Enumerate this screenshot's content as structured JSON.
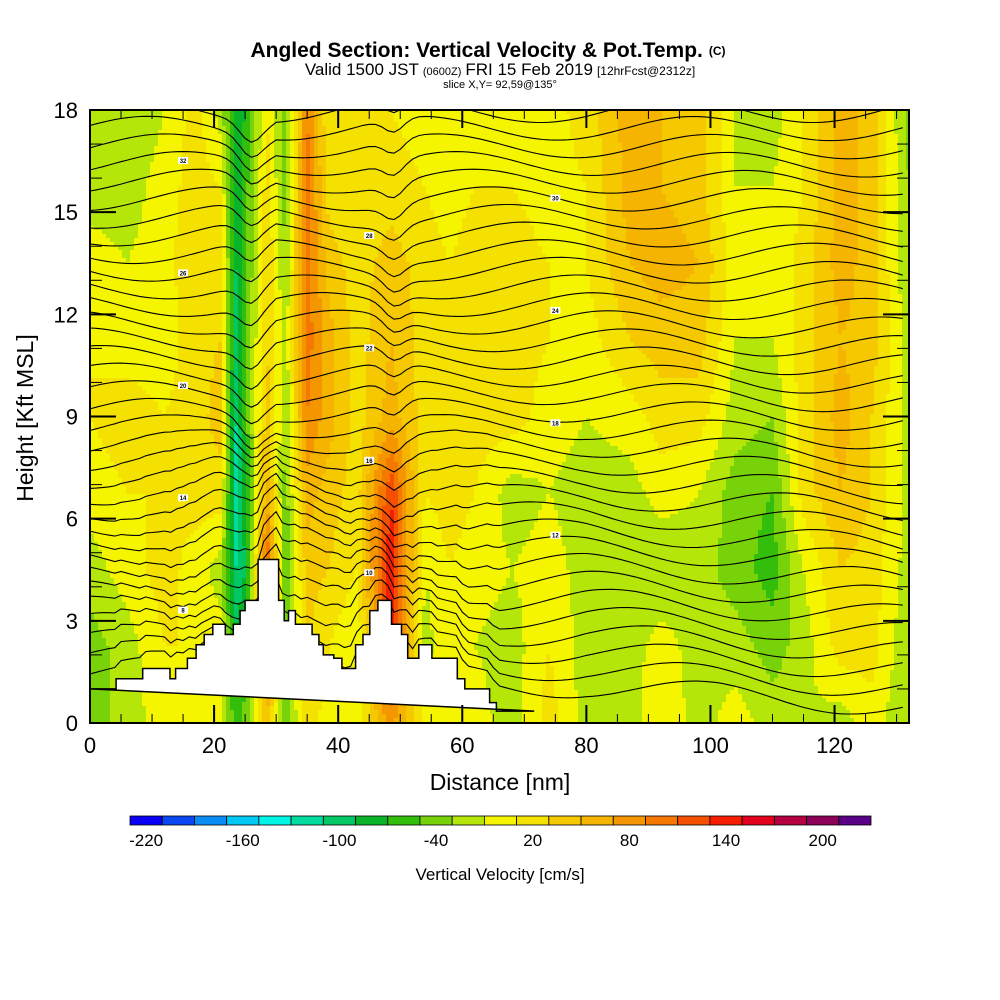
{
  "chart_data": {
    "type": "heatmap",
    "title": "Angled Section: Vertical Velocity & Pot.Temp.",
    "title_suffix": "(C)",
    "subtitle_parts": {
      "valid": "Valid 1500 JST",
      "utc": "(0600Z)",
      "date": "FRI 15 Feb 2019",
      "forecast": "[12hrFcst@2312z]"
    },
    "slice_label": "slice X,Y= 92,59@135°",
    "xlabel": "Distance [nm]",
    "ylabel": "Height [Kft MSL]",
    "xlim": [
      0,
      132
    ],
    "ylim": [
      0,
      18
    ],
    "xticks": [
      0,
      20,
      40,
      60,
      80,
      100,
      120
    ],
    "xtick_labels": [
      "0",
      "20",
      "40",
      "60",
      "80",
      "100",
      "120"
    ],
    "xminor_step": 5,
    "yticks": [
      0,
      3,
      6,
      9,
      12,
      15,
      18
    ],
    "ytick_labels": [
      "0",
      "3",
      "6",
      "9",
      "12",
      "15",
      "18"
    ],
    "yminor_step": 1,
    "colorbar": {
      "label": "Vertical Velocity [cm/s]",
      "min": -230,
      "step": 20,
      "tick_values": [
        -220,
        -160,
        -100,
        -40,
        20,
        80,
        140,
        200
      ],
      "tick_labels": [
        "-220",
        "-160",
        "-100",
        "-40",
        "20",
        "80",
        "140",
        "200"
      ],
      "colors": [
        "#0a00f5",
        "#0a48f5",
        "#0a8cf5",
        "#00c8f5",
        "#00f5e6",
        "#00dca0",
        "#00c864",
        "#0ab428",
        "#32be0a",
        "#78d20a",
        "#b4e60a",
        "#f5f500",
        "#f5e100",
        "#f5c800",
        "#f5b400",
        "#f59600",
        "#f57800",
        "#f55000",
        "#f51e00",
        "#e1001e",
        "#b40041",
        "#8c005a",
        "#5a0087"
      ]
    },
    "terrain_kft": {
      "distance_nm": [
        0,
        4.2,
        4.2,
        8.5,
        8.5,
        12.9,
        12.9,
        13.8,
        13.8,
        15.7,
        15.7,
        17.1,
        17.1,
        18.4,
        18.4,
        19.8,
        19.8,
        21.8,
        21.8,
        23.1,
        23.1,
        24.2,
        24.2,
        25.0,
        25.0,
        27.1,
        27.1,
        30.4,
        30.4,
        31.3,
        31.3,
        32.0,
        32.0,
        33.1,
        33.1,
        35.8,
        35.8,
        36.9,
        36.9,
        37.6,
        37.6,
        39.3,
        39.3,
        40.6,
        40.6,
        42.8,
        42.8,
        44.0,
        44.0,
        45.1,
        45.1,
        46.4,
        46.4,
        48.6,
        48.6,
        50.2,
        50.2,
        51.2,
        51.2,
        53.0,
        53.0,
        55.1,
        55.1,
        59.2,
        59.2,
        60.4,
        60.4,
        64.4,
        64.4,
        65.5,
        65.5,
        67.6,
        67.6,
        71.6,
        71.6,
        132
      ],
      "height": [
        1.0,
        1.0,
        1.3,
        1.3,
        1.6,
        1.6,
        1.3,
        1.3,
        1.6,
        1.6,
        1.9,
        1.9,
        2.3,
        2.3,
        2.6,
        2.6,
        2.9,
        2.9,
        2.6,
        2.6,
        2.9,
        2.9,
        3.3,
        3.3,
        3.6,
        3.6,
        4.8,
        4.8,
        3.6,
        3.6,
        3.0,
        3.0,
        3.3,
        3.3,
        2.9,
        2.9,
        2.6,
        2.6,
        2.3,
        2.3,
        2.0,
        2.0,
        1.9,
        1.9,
        1.6,
        1.6,
        2.3,
        2.3,
        2.6,
        2.6,
        3.3,
        3.3,
        3.6,
        3.6,
        2.9,
        2.9,
        2.6,
        2.6,
        1.9,
        1.9,
        2.3,
        2.3,
        1.9,
        1.9,
        1.3,
        1.3,
        1.0,
        1.0,
        0.6,
        0.6,
        0.35,
        0.35,
        0.35,
        0.35,
        0.35
      ]
    },
    "w_field": {
      "description_note": "columns of vertical velocity (cm/s) by distance",
      "columns": [
        {
          "x": 0,
          "w": [
            -40,
            -40,
            -20,
            0,
            10,
            10,
            0,
            -20,
            -30
          ]
        },
        {
          "x": 6,
          "w": [
            -20,
            -20,
            0,
            10,
            20,
            0,
            -10,
            -20,
            -30
          ]
        },
        {
          "x": 12,
          "w": [
            0,
            10,
            20,
            10,
            10,
            0,
            0,
            0,
            -10
          ]
        },
        {
          "x": 17,
          "w": [
            10,
            10,
            0,
            20,
            20,
            20,
            30,
            20,
            20
          ]
        },
        {
          "x": 21,
          "w": [
            -10,
            0,
            -20,
            20,
            40,
            30,
            30,
            10,
            -20
          ]
        },
        {
          "x": 23.5,
          "w": [
            -60,
            -80,
            -110,
            -120,
            -110,
            -100,
            -90,
            -80,
            -80
          ]
        },
        {
          "x": 25,
          "w": [
            -40,
            -70,
            -90,
            -80,
            -60,
            -50,
            -60,
            -60,
            -70
          ]
        },
        {
          "x": 28.5,
          "w": [
            40,
            110,
            120,
            60,
            40,
            30,
            30,
            20,
            10
          ]
        },
        {
          "x": 31.5,
          "w": [
            -40,
            -40,
            -50,
            -40,
            -30,
            -20,
            -30,
            -40,
            -40
          ]
        },
        {
          "x": 35,
          "w": [
            20,
            30,
            40,
            60,
            90,
            100,
            100,
            100,
            90
          ]
        },
        {
          "x": 38.5,
          "w": [
            0,
            10,
            30,
            40,
            60,
            60,
            40,
            20,
            10
          ]
        },
        {
          "x": 43,
          "w": [
            0,
            -10,
            10,
            20,
            20,
            20,
            20,
            10,
            10
          ]
        },
        {
          "x": 48.5,
          "w": [
            80,
            140,
            150,
            130,
            60,
            50,
            40,
            20,
            10
          ]
        },
        {
          "x": 54,
          "w": [
            0,
            -20,
            -10,
            10,
            20,
            20,
            20,
            10,
            0
          ]
        },
        {
          "x": 58,
          "w": [
            10,
            10,
            10,
            20,
            30,
            30,
            10,
            0,
            -10
          ]
        },
        {
          "x": 62,
          "w": [
            0,
            -10,
            0,
            10,
            20,
            20,
            20,
            10,
            -10
          ]
        },
        {
          "x": 68,
          "w": [
            -20,
            -20,
            -10,
            -20,
            20,
            20,
            20,
            10,
            10
          ]
        },
        {
          "x": 74,
          "w": [
            20,
            10,
            0,
            -10,
            0,
            10,
            10,
            0,
            0
          ]
        },
        {
          "x": 80,
          "w": [
            -20,
            -20,
            -20,
            -20,
            -10,
            0,
            10,
            10,
            20
          ]
        },
        {
          "x": 87,
          "w": [
            -20,
            -20,
            -30,
            -20,
            0,
            30,
            50,
            60,
            60
          ]
        },
        {
          "x": 92,
          "w": [
            10,
            0,
            -30,
            0,
            20,
            40,
            60,
            50,
            50
          ]
        },
        {
          "x": 98,
          "w": [
            -20,
            -20,
            -20,
            -10,
            20,
            40,
            50,
            40,
            40
          ]
        },
        {
          "x": 104,
          "w": [
            0,
            -20,
            -40,
            -40,
            -20,
            -10,
            0,
            -10,
            -10
          ]
        },
        {
          "x": 110,
          "w": [
            -20,
            -40,
            -60,
            -50,
            -30,
            -10,
            -10,
            -10,
            -20
          ]
        },
        {
          "x": 115,
          "w": [
            -10,
            -20,
            -10,
            20,
            20,
            20,
            20,
            10,
            10
          ]
        },
        {
          "x": 121,
          "w": [
            -20,
            20,
            30,
            50,
            60,
            50,
            60,
            60,
            60
          ]
        },
        {
          "x": 126,
          "w": [
            0,
            20,
            20,
            30,
            30,
            40,
            40,
            40,
            40
          ]
        },
        {
          "x": 132,
          "w": [
            -30,
            -30,
            -20,
            -20,
            -20,
            -20,
            -30,
            -30,
            -40
          ]
        }
      ],
      "levels_kft": [
        0,
        2.25,
        4.5,
        6.75,
        9,
        11.25,
        13.5,
        15.75,
        18
      ]
    },
    "theta_contours": {
      "units": "C",
      "count": 34,
      "labels_shown": [
        "8",
        "10",
        "12",
        "14",
        "16",
        "18",
        "20",
        "22",
        "24",
        "26",
        "28",
        "30",
        "32"
      ]
    }
  }
}
